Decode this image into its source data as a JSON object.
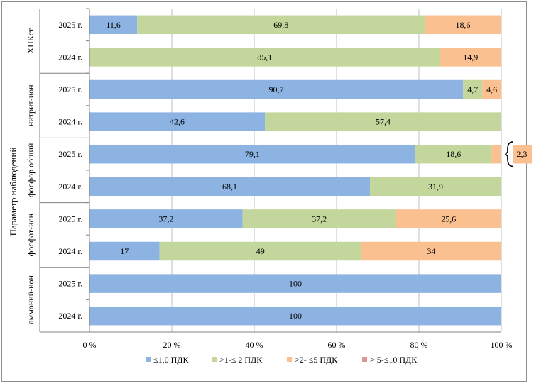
{
  "chart_data": {
    "type": "bar",
    "orientation": "horizontal",
    "stacked": true,
    "ylabel": "Параметр наблюдений",
    "xlim": [
      0,
      100
    ],
    "x_ticks": [
      "0 %",
      "20 %",
      "40 %",
      "60 %",
      "80 %",
      "100 %"
    ],
    "grid": true,
    "legend_position": "bottom",
    "groups": [
      {
        "name": "ХПКст",
        "rows": [
          {
            "year": "2025 г.",
            "values": [
              11.6,
              69.8,
              18.6,
              0
            ],
            "labels": [
              "11,6",
              "69,8",
              "18,6",
              ""
            ]
          },
          {
            "year": "2024 г.",
            "values": [
              0,
              85.1,
              14.9,
              0
            ],
            "labels": [
              "",
              "85,1",
              "14,9",
              ""
            ]
          }
        ]
      },
      {
        "name": "нитрит-ион",
        "rows": [
          {
            "year": "2025 г.",
            "values": [
              90.7,
              4.7,
              4.6,
              0
            ],
            "labels": [
              "90,7",
              "4,7",
              "4,6",
              ""
            ]
          },
          {
            "year": "2024 г.",
            "values": [
              42.6,
              57.4,
              0,
              0
            ],
            "labels": [
              "42,6",
              "57,4",
              "",
              ""
            ]
          }
        ]
      },
      {
        "name": "фосфор общий",
        "rows": [
          {
            "year": "2025 г.",
            "values": [
              79.1,
              18.6,
              2.3,
              0
            ],
            "labels": [
              "79,1",
              "18,6",
              "",
              ""
            ],
            "callout": "2,3"
          },
          {
            "year": "2024 г.",
            "values": [
              68.1,
              31.9,
              0,
              0
            ],
            "labels": [
              "68,1",
              "31,9",
              "",
              ""
            ]
          }
        ]
      },
      {
        "name": "фосфат-ион",
        "rows": [
          {
            "year": "2025 г.",
            "values": [
              37.2,
              37.2,
              25.6,
              0
            ],
            "labels": [
              "37,2",
              "37,2",
              "25,6",
              ""
            ]
          },
          {
            "year": "2024 г.",
            "values": [
              17,
              49,
              34,
              0
            ],
            "labels": [
              "17",
              "49",
              "34",
              ""
            ]
          }
        ]
      },
      {
        "name": "аммоний-ион",
        "rows": [
          {
            "year": "2025 г.",
            "values": [
              100,
              0,
              0,
              0
            ],
            "labels": [
              "100",
              "",
              "",
              ""
            ]
          },
          {
            "year": "2024 г.",
            "values": [
              100,
              0,
              0,
              0
            ],
            "labels": [
              "100",
              "",
              "",
              ""
            ]
          }
        ]
      }
    ],
    "series": [
      {
        "name": "≤1,0 ПДК",
        "color": "#8db3e2"
      },
      {
        "name": ">1-≤ 2 ПДК",
        "color": "#c3d69b"
      },
      {
        "name": ">2- ≤5 ПДК",
        "color": "#fac090"
      },
      {
        "name": "> 5-≤10 ПДК",
        "color": "#d99694"
      }
    ]
  }
}
